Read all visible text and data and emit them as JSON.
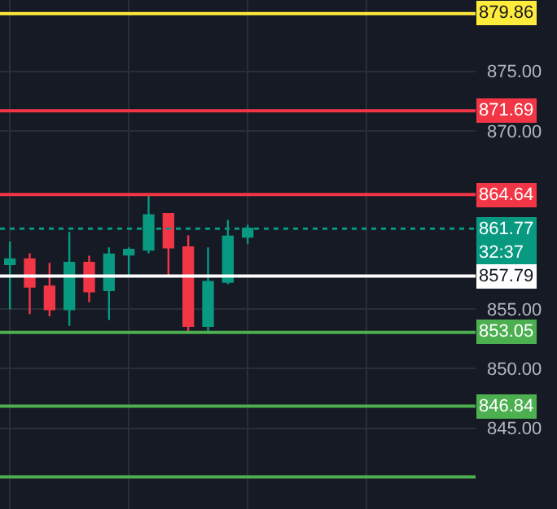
{
  "chart_data": {
    "type": "candlestick",
    "categories": [
      null,
      null,
      null,
      null,
      null,
      null,
      null,
      null,
      null,
      null,
      null,
      null,
      null,
      null,
      null,
      null,
      null,
      null,
      null,
      null,
      null,
      null,
      null,
      null
    ],
    "ohlc": [
      [
        858.8,
        860.7,
        855.0,
        859.2
      ],
      [
        859.2,
        859.7,
        854.6,
        856.9
      ],
      [
        856.9,
        858.9,
        854.4,
        855.0
      ],
      [
        855.0,
        861.5,
        853.6,
        858.9
      ],
      [
        858.9,
        859.5,
        855.6,
        856.5
      ],
      [
        856.6,
        860.2,
        854.1,
        859.6
      ],
      [
        859.6,
        860.2,
        857.8,
        860.0
      ],
      [
        860.0,
        864.7,
        859.7,
        862.9
      ],
      [
        863.0,
        863.0,
        857.8,
        860.2
      ],
      [
        860.2,
        861.2,
        853.0,
        853.6
      ],
      [
        853.6,
        860.2,
        853.0,
        857.3
      ],
      [
        857.3,
        862.5,
        857.1,
        861.1
      ],
      [
        861.1,
        862.1,
        860.5,
        861.77
      ],
      null,
      null,
      null,
      null,
      null,
      null,
      null,
      null,
      null,
      null,
      null
    ],
    "colors": [
      "#089981",
      "#f23645",
      "#f23645",
      "#089981",
      "#f23645",
      "#089981",
      "#089981",
      "#089981",
      "#f23645",
      "#f23645",
      "#089981",
      "#089981",
      "#089981",
      null,
      null,
      null,
      null,
      null,
      null,
      null,
      null,
      null,
      null,
      null
    ],
    "ylim": [
      838.2,
      881.0
    ],
    "yticks": [
      {
        "value": 845,
        "label": "845.00"
      },
      {
        "value": 850,
        "label": "850.00"
      },
      {
        "value": 855,
        "label": "855.00"
      },
      {
        "value": 870,
        "label": "870.00"
      },
      {
        "value": 875,
        "label": "875.00"
      }
    ],
    "ref_lines": [
      {
        "axis": "y",
        "value": 879.86,
        "label": "879.86",
        "color": "#ffeb3b"
      },
      {
        "axis": "y",
        "value": 871.69,
        "label": "871.69",
        "color": "#f23645"
      },
      {
        "axis": "y",
        "value": 864.64,
        "label": "864.64",
        "color": "#f23645"
      },
      {
        "axis": "y",
        "value": 861.77,
        "label": "861.77",
        "color": "#089981",
        "line_style": "dotted"
      },
      {
        "axis": "y",
        "value": 857.79,
        "label": "857.79",
        "color": "#ffffff"
      },
      {
        "axis": "y",
        "value": 853.05,
        "label": "853.05",
        "color": "#4caf50"
      },
      {
        "axis": "y",
        "value": 846.84,
        "label": "846.84",
        "color": "#4caf50"
      },
      {
        "axis": "y",
        "value": 840.9,
        "label": null,
        "color": "#4caf50"
      }
    ],
    "annotations": [
      "32:37"
    ],
    "grid": true
  }
}
